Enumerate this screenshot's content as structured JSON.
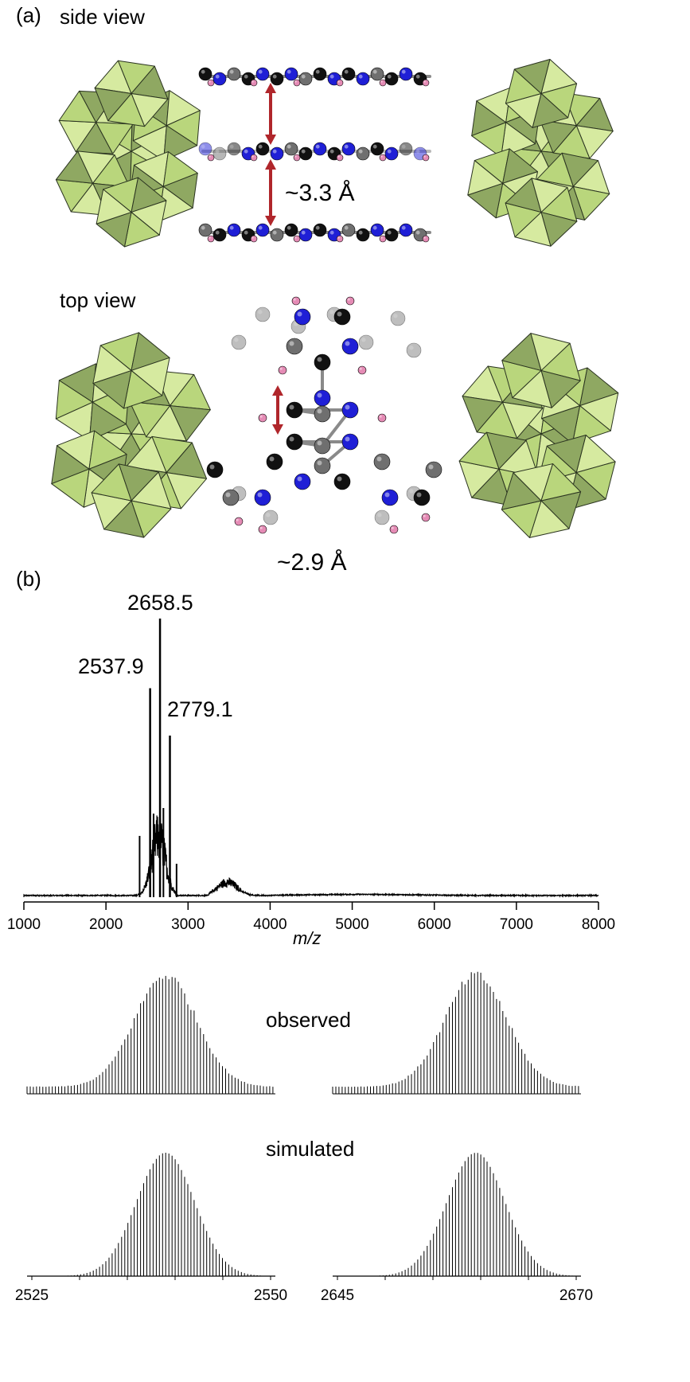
{
  "panel_a": {
    "label": "(a)",
    "side_view": {
      "title": "side view",
      "spacing": "~3.3 Å"
    },
    "top_view": {
      "title": "top view",
      "spacing": "~2.9 Å"
    },
    "colors": {
      "polyhedron_light": "#d6eaa0",
      "polyhedron_mid": "#b9d67c",
      "polyhedron_dark": "#8fa862",
      "atom_black": "#111111",
      "atom_blue": "#1f1fd6",
      "atom_gray": "#6f6f6f",
      "atom_pink": "#e58bb5",
      "arrow": "#b0262b"
    }
  },
  "panel_b": {
    "label": "(b)",
    "chart_data": [
      {
        "type": "line",
        "title": "",
        "xlabel": "m/z",
        "ylabel": "",
        "xlim": [
          1000,
          8000
        ],
        "xticks": [
          1000,
          2000,
          3000,
          4000,
          5000,
          6000,
          7000,
          8000
        ],
        "peaks": [
          {
            "x": 2537.9,
            "y": 0.75,
            "label": "2537.9"
          },
          {
            "x": 2658.5,
            "y": 1.0,
            "label": "2658.5"
          },
          {
            "x": 2779.1,
            "y": 0.58,
            "label": "2779.1"
          }
        ],
        "grid": false
      },
      {
        "type": "line",
        "title": "",
        "xlim": [
          2525,
          2550
        ],
        "xticks": [
          2525,
          2550
        ],
        "series": [
          {
            "name": "observed",
            "center": 2539,
            "spacing": 0.33
          },
          {
            "name": "simulated",
            "center": 2539,
            "spacing": 0.33
          }
        ]
      },
      {
        "type": "line",
        "title": "",
        "xlim": [
          2645,
          2670
        ],
        "xticks": [
          2645,
          2670
        ],
        "series": [
          {
            "name": "observed",
            "center": 2659.5,
            "spacing": 0.33
          },
          {
            "name": "simulated",
            "center": 2659.5,
            "spacing": 0.33
          }
        ]
      }
    ]
  }
}
